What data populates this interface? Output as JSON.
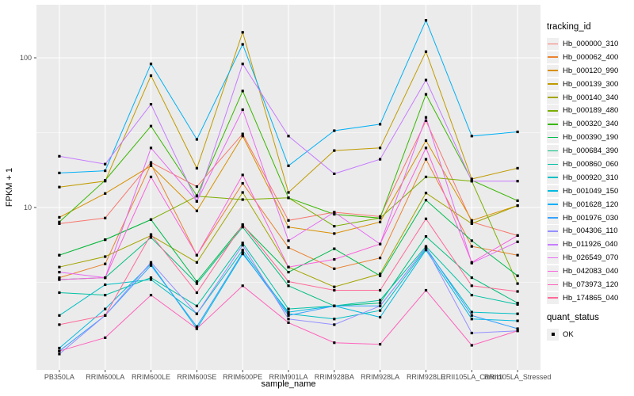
{
  "chart_data": {
    "type": "line",
    "title": "",
    "xlabel": "sample_name",
    "ylabel": "FPKM + 1",
    "y_scale": "log10",
    "y_ticks": [
      10,
      100
    ],
    "y_minor_gridlines": [
      3.1623,
      31.623
    ],
    "ylim": [
      0.82,
      226
    ],
    "grid": "on",
    "legend_position": "right",
    "point_marker": "black-square",
    "legend": {
      "tracking_title": "tracking_id",
      "quant_title": "quant_status",
      "quant_label": "OK"
    },
    "style": {
      "panel_bg": "#EBEBEB",
      "grid_color": "#FFFFFF",
      "tick_text_color": "#4D4D4D",
      "axis_title_color": "#000000",
      "point_color": "#000000",
      "legend_key_bg": "#EFEFEF"
    },
    "x_categories": [
      "PB350LA",
      "RRIM600LA",
      "RRIM600LE",
      "RRIM600SE",
      "RRIM600PE",
      "RRIM901LA",
      "RRIM928BA",
      "RRIM928LA",
      "RRIM928LE",
      "RRII105LA_Control",
      "RRII105LA_Stressed"
    ],
    "series": [
      {
        "tracking_id": "Hb_000000_310",
        "color": "#F8766D",
        "fpkm_plus_1": [
          7.8,
          8.5,
          20,
          13.8,
          31,
          8.2,
          9.3,
          8.7,
          38,
          8.0,
          6.5
        ]
      },
      {
        "tracking_id": "Hb_000062_400",
        "color": "#EA8331",
        "fpkm_plus_1": [
          3.4,
          4.2,
          19.5,
          4.8,
          14.5,
          5.4,
          3.9,
          4.6,
          21,
          5.5,
          4.8
        ]
      },
      {
        "tracking_id": "Hb_000120_990",
        "color": "#D89000",
        "fpkm_plus_1": [
          8.6,
          12.4,
          19,
          9.5,
          30,
          7.4,
          6.7,
          8.0,
          28,
          8.2,
          10.3
        ]
      },
      {
        "tracking_id": "Hb_000139_300",
        "color": "#C09B00",
        "fpkm_plus_1": [
          13.7,
          15.0,
          76,
          18.3,
          148,
          12.6,
          24,
          25,
          110,
          15.5,
          18.3
        ]
      },
      {
        "tracking_id": "Hb_000140_340",
        "color": "#A3A500",
        "fpkm_plus_1": [
          4.0,
          4.7,
          6.5,
          4.3,
          12.6,
          4.0,
          2.95,
          3.6,
          12.5,
          7.8,
          10.3
        ]
      },
      {
        "tracking_id": "Hb_000189_480",
        "color": "#7CAE00",
        "fpkm_plus_1": [
          4.8,
          6.1,
          8.3,
          11.9,
          11.3,
          11.6,
          7.5,
          8.5,
          16,
          15.0,
          3.1
        ]
      },
      {
        "tracking_id": "Hb_000320_340",
        "color": "#39B600",
        "fpkm_plus_1": [
          8.0,
          15.2,
          35,
          12.0,
          60,
          11.6,
          9.0,
          8.5,
          57,
          15.2,
          11.1
        ]
      },
      {
        "tracking_id": "Hb_000390_190",
        "color": "#00BB4E",
        "fpkm_plus_1": [
          4.8,
          6.1,
          8.3,
          3.2,
          7.6,
          3.7,
          5.3,
          3.5,
          11.2,
          6.0,
          3.5
        ]
      },
      {
        "tracking_id": "Hb_000684_390",
        "color": "#00BF7D",
        "fpkm_plus_1": [
          3.3,
          3.4,
          6.3,
          3.1,
          7.4,
          3.0,
          2.2,
          2.3,
          6.4,
          3.4,
          2.3
        ]
      },
      {
        "tracking_id": "Hb_000860_060",
        "color": "#00C1A3",
        "fpkm_plus_1": [
          2.7,
          2.6,
          3.4,
          2.2,
          5.8,
          2.1,
          2.2,
          2.4,
          5.5,
          2.6,
          2.25
        ]
      },
      {
        "tracking_id": "Hb_000920_310",
        "color": "#00BFC4",
        "fpkm_plus_1": [
          1.9,
          3.05,
          3.3,
          1.95,
          5.2,
          1.95,
          1.8,
          2.05,
          5.3,
          2.0,
          1.95
        ]
      },
      {
        "tracking_id": "Hb_001049_150",
        "color": "#00BAE0",
        "fpkm_plus_1": [
          1.15,
          2.1,
          4.2,
          1.55,
          4.9,
          2.0,
          2.2,
          1.85,
          5.2,
          1.8,
          1.75
        ]
      },
      {
        "tracking_id": "Hb_001628_120",
        "color": "#00B0F6",
        "fpkm_plus_1": [
          17,
          17.6,
          91,
          28.5,
          123,
          19,
          32.6,
          36,
          178,
          30,
          32
        ]
      },
      {
        "tracking_id": "Hb_001976_030",
        "color": "#35A2FF",
        "fpkm_plus_1": [
          1.1,
          1.9,
          4.1,
          1.6,
          5.0,
          1.9,
          2.2,
          2.2,
          5.4,
          1.9,
          1.55
        ]
      },
      {
        "tracking_id": "Hb_004306_110",
        "color": "#9590FF",
        "fpkm_plus_1": [
          1.05,
          1.9,
          4.3,
          1.95,
          5.6,
          1.8,
          1.65,
          2.2,
          5.4,
          1.45,
          1.5
        ]
      },
      {
        "tracking_id": "Hb_011926_040",
        "color": "#C77CFF",
        "fpkm_plus_1": [
          22,
          19.5,
          49,
          11,
          91,
          30,
          16.8,
          21,
          71,
          15,
          15
        ]
      },
      {
        "tracking_id": "Hb_026549_070",
        "color": "#E76BF3",
        "fpkm_plus_1": [
          3.7,
          3.4,
          25,
          11,
          45,
          6.0,
          9.3,
          5.7,
          40,
          4.25,
          5.9
        ]
      },
      {
        "tracking_id": "Hb_042083_040",
        "color": "#FA62DB",
        "fpkm_plus_1": [
          3.3,
          3.4,
          16,
          4.8,
          16.5,
          4.0,
          4.5,
          5.7,
          25,
          4.3,
          6.5
        ]
      },
      {
        "tracking_id": "Hb_073973_120",
        "color": "#FF62BC",
        "fpkm_plus_1": [
          1.1,
          1.35,
          2.6,
          1.55,
          3.0,
          1.7,
          1.25,
          1.22,
          2.8,
          1.2,
          1.5
        ]
      },
      {
        "tracking_id": "Hb_174865_040",
        "color": "#FF6A98",
        "fpkm_plus_1": [
          1.65,
          1.9,
          6.6,
          2.7,
          7.7,
          3.2,
          2.8,
          2.8,
          8.4,
          3.0,
          2.75
        ]
      }
    ]
  }
}
